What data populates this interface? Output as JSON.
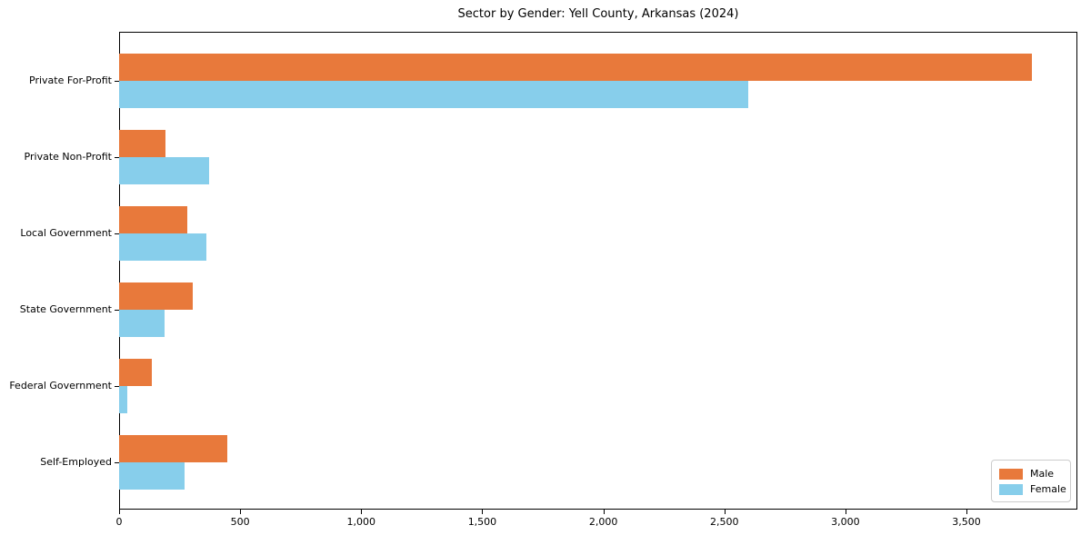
{
  "title": "Sector by Gender: Yell County, Arkansas (2024)",
  "chart_data": {
    "type": "bar",
    "orientation": "horizontal",
    "title": "Sector by Gender: Yell County, Arkansas (2024)",
    "categories": [
      "Private For-Profit",
      "Private Non-Profit",
      "Local Government",
      "State Government",
      "Federal Government",
      "Self-Employed"
    ],
    "series": [
      {
        "name": "Male",
        "color": "#e8793b",
        "values": [
          3772,
          192,
          281,
          305,
          134,
          446
        ]
      },
      {
        "name": "Female",
        "color": "#87ceeb",
        "values": [
          2600,
          371,
          359,
          186,
          33,
          271
        ]
      }
    ],
    "xlabel": "",
    "ylabel": "",
    "xlim": [
      0,
      3958
    ],
    "xticks": [
      0,
      500,
      1000,
      1500,
      2000,
      2500,
      3000,
      3500
    ],
    "xtick_labels": [
      "0",
      "500",
      "1,000",
      "1,500",
      "2,000",
      "2,500",
      "3,000",
      "3,500"
    ],
    "legend_position": "lower right",
    "grid": false,
    "background_color": "#ffffff",
    "spine_color": "#000000"
  },
  "legend": {
    "items": [
      {
        "label": "Male",
        "color": "#e8793b"
      },
      {
        "label": "Female",
        "color": "#87ceeb"
      }
    ]
  }
}
